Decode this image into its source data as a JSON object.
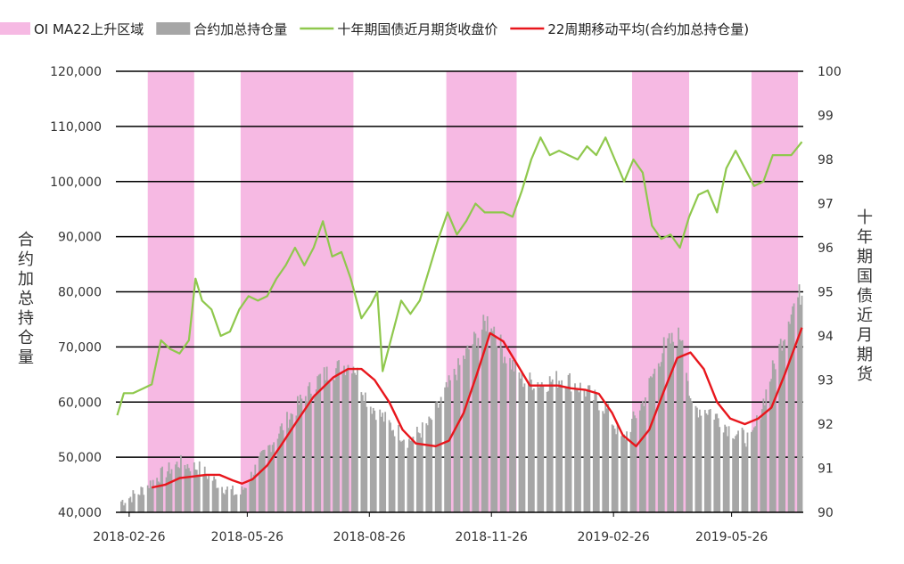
{
  "chart_data": {
    "type": "combo",
    "legend": [
      {
        "key": "shade",
        "label": "OI MA22上升区域",
        "color": "#f6b9e3"
      },
      {
        "key": "bars",
        "label": "合约加总持仓量",
        "color": "#a6a6a6"
      },
      {
        "key": "price",
        "label": "十年期国债近月期货收盘价",
        "color": "#8fc84d"
      },
      {
        "key": "ma",
        "label": "22周期移动平均(合约加总持仓量)",
        "color": "#e8161c"
      }
    ],
    "legend_position": "top",
    "y_left": {
      "label": "合约加总持仓量",
      "min": 40000,
      "max": 120000,
      "ticks": [
        "40,000",
        "50,000",
        "60,000",
        "70,000",
        "80,000",
        "90,000",
        "100,000",
        "110,000",
        "120,000"
      ]
    },
    "y_right": {
      "label": "十年期国债近月期货",
      "min": 90,
      "max": 100,
      "ticks": [
        "90",
        "91",
        "92",
        "93",
        "94",
        "95",
        "96",
        "97",
        "98",
        "99",
        "100"
      ]
    },
    "x_range": [
      "2018-02-16",
      "2019-07-19"
    ],
    "x_ticks": [
      "2018-02-26",
      "2018-05-26",
      "2018-08-26",
      "2018-11-26",
      "2019-02-26",
      "2019-05-26"
    ],
    "grid": "horizontal",
    "shaded_regions": [
      [
        "2018-03-12",
        "2018-04-16"
      ],
      [
        "2018-05-21",
        "2018-08-14"
      ],
      [
        "2018-10-23",
        "2018-12-15"
      ],
      [
        "2019-03-12",
        "2019-04-24"
      ],
      [
        "2019-06-10",
        "2019-07-15"
      ]
    ],
    "open_interest": {
      "dates": [
        "2018-02-20",
        "2018-03-05",
        "2018-03-20",
        "2018-04-05",
        "2018-04-20",
        "2018-05-05",
        "2018-05-20",
        "2018-06-05",
        "2018-06-20",
        "2018-07-05",
        "2018-07-20",
        "2018-08-05",
        "2018-08-14",
        "2018-08-25",
        "2018-09-10",
        "2018-09-25",
        "2018-10-10",
        "2018-10-25",
        "2018-11-10",
        "2018-11-25",
        "2018-12-05",
        "2018-12-20",
        "2019-01-05",
        "2019-01-20",
        "2019-02-05",
        "2019-02-20",
        "2019-03-05",
        "2019-03-20",
        "2019-04-05",
        "2019-04-20",
        "2019-04-25",
        "2019-05-10",
        "2019-05-25",
        "2019-06-10",
        "2019-06-25",
        "2019-07-10",
        "2019-07-18"
      ],
      "values": [
        42000,
        43500,
        46500,
        49000,
        48000,
        45000,
        43000,
        49500,
        55000,
        60000,
        64500,
        66500,
        67000,
        60000,
        56000,
        53000,
        56000,
        63000,
        70000,
        75500,
        69000,
        64000,
        63500,
        64500,
        62000,
        59000,
        53000,
        60000,
        70000,
        72500,
        59000,
        58500,
        55000,
        53000,
        65000,
        77000,
        80000
      ]
    },
    "ma22": {
      "dates": [
        "2018-03-15",
        "2018-03-25",
        "2018-04-05",
        "2018-04-15",
        "2018-04-25",
        "2018-05-05",
        "2018-05-15",
        "2018-05-22",
        "2018-05-30",
        "2018-06-10",
        "2018-06-20",
        "2018-07-01",
        "2018-07-15",
        "2018-07-30",
        "2018-08-10",
        "2018-08-20",
        "2018-08-30",
        "2018-09-10",
        "2018-09-20",
        "2018-09-30",
        "2018-10-15",
        "2018-10-25",
        "2018-11-05",
        "2018-11-15",
        "2018-11-25",
        "2018-12-05",
        "2018-12-15",
        "2018-12-25",
        "2019-01-05",
        "2019-01-15",
        "2019-01-25",
        "2019-02-05",
        "2019-02-15",
        "2019-02-25",
        "2019-03-05",
        "2019-03-15",
        "2019-03-25",
        "2019-04-05",
        "2019-04-15",
        "2019-04-25",
        "2019-05-05",
        "2019-05-15",
        "2019-05-25",
        "2019-06-05",
        "2019-06-15",
        "2019-06-25",
        "2019-07-05",
        "2019-07-18"
      ],
      "values": [
        44500,
        45000,
        46200,
        46500,
        46800,
        46800,
        45800,
        45200,
        46000,
        48500,
        52000,
        56000,
        61000,
        64500,
        66000,
        66000,
        64000,
        60000,
        55000,
        52500,
        52000,
        53000,
        58000,
        65000,
        72500,
        71000,
        67000,
        63000,
        63000,
        63000,
        62500,
        62200,
        61500,
        58000,
        54000,
        52000,
        55000,
        62000,
        68000,
        69000,
        66000,
        60000,
        57000,
        56000,
        57000,
        59000,
        65000,
        73500
      ]
    },
    "price": {
      "dates": [
        "2018-02-17",
        "2018-02-22",
        "2018-03-01",
        "2018-03-08",
        "2018-03-15",
        "2018-03-22",
        "2018-03-29",
        "2018-04-05",
        "2018-04-12",
        "2018-04-17",
        "2018-04-22",
        "2018-04-29",
        "2018-05-06",
        "2018-05-13",
        "2018-05-20",
        "2018-05-27",
        "2018-06-03",
        "2018-06-10",
        "2018-06-17",
        "2018-06-24",
        "2018-07-01",
        "2018-07-08",
        "2018-07-15",
        "2018-07-22",
        "2018-07-29",
        "2018-08-05",
        "2018-08-12",
        "2018-08-20",
        "2018-08-27",
        "2018-09-01",
        "2018-09-05",
        "2018-09-12",
        "2018-09-19",
        "2018-09-26",
        "2018-10-03",
        "2018-10-10",
        "2018-10-17",
        "2018-10-24",
        "2018-10-31",
        "2018-11-07",
        "2018-11-14",
        "2018-11-21",
        "2018-11-28",
        "2018-12-05",
        "2018-12-12",
        "2018-12-19",
        "2018-12-26",
        "2019-01-02",
        "2019-01-09",
        "2019-01-16",
        "2019-01-23",
        "2019-01-30",
        "2019-02-06",
        "2019-02-13",
        "2019-02-20",
        "2019-02-27",
        "2019-03-06",
        "2019-03-13",
        "2019-03-20",
        "2019-03-27",
        "2019-04-03",
        "2019-04-10",
        "2019-04-17",
        "2019-04-24",
        "2019-05-01",
        "2019-05-08",
        "2019-05-15",
        "2019-05-22",
        "2019-05-29",
        "2019-06-05",
        "2019-06-12",
        "2019-06-19",
        "2019-06-26",
        "2019-07-03",
        "2019-07-10",
        "2019-07-18"
      ],
      "values": [
        92.2,
        92.7,
        92.7,
        92.8,
        92.9,
        93.9,
        93.7,
        93.6,
        93.9,
        95.3,
        94.8,
        94.6,
        94.0,
        94.1,
        94.6,
        94.9,
        94.8,
        94.9,
        95.3,
        95.6,
        96.0,
        95.6,
        96.0,
        96.6,
        95.8,
        95.9,
        95.3,
        94.4,
        94.7,
        95.0,
        93.2,
        94.0,
        94.8,
        94.5,
        94.8,
        95.5,
        96.2,
        96.8,
        96.3,
        96.6,
        97.0,
        96.8,
        96.8,
        96.8,
        96.7,
        97.3,
        98.0,
        98.5,
        98.1,
        98.2,
        98.1,
        98.0,
        98.3,
        98.1,
        98.5,
        98.0,
        97.5,
        98.0,
        97.7,
        96.5,
        96.2,
        96.3,
        96.0,
        96.7,
        97.2,
        97.3,
        96.8,
        97.8,
        98.2,
        97.8,
        97.4,
        97.5,
        98.1,
        98.1,
        98.1,
        98.4
      ]
    }
  }
}
